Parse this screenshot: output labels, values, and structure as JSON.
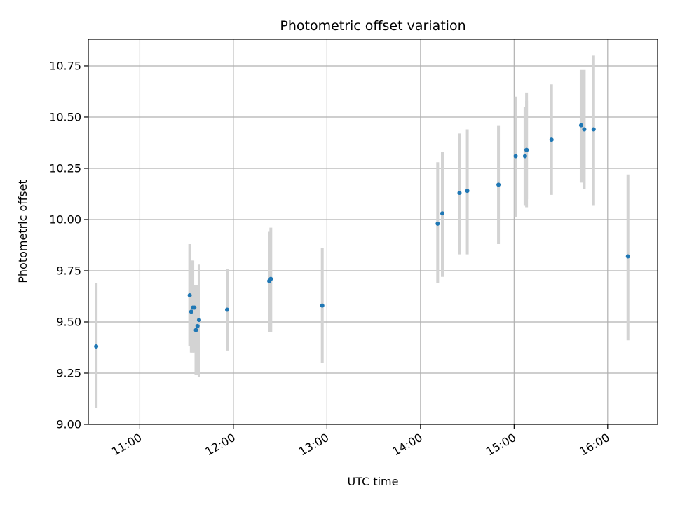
{
  "chart_data": {
    "type": "scatter",
    "title": "Photometric offset variation",
    "xlabel": "UTC time",
    "ylabel": "Photometric offset",
    "xlim": [
      "10:27",
      "16:32"
    ],
    "ylim": [
      9.0,
      10.88
    ],
    "xticks": [
      "11:00",
      "12:00",
      "13:00",
      "14:00",
      "15:00",
      "16:00"
    ],
    "yticks": [
      "9.00",
      "9.25",
      "9.50",
      "9.75",
      "10.00",
      "10.25",
      "10.50",
      "10.75"
    ],
    "grid": true,
    "colors": {
      "points": "#1f77b4",
      "errorbars": "#d3d3d3",
      "grid": "#b0b0b0"
    },
    "points": [
      {
        "x": "10:32",
        "y": 9.38,
        "ylow": 9.08,
        "yhigh": 9.69
      },
      {
        "x": "11:32",
        "y": 9.63,
        "ylow": 9.38,
        "yhigh": 9.88
      },
      {
        "x": "11:33",
        "y": 9.55,
        "ylow": 9.35,
        "yhigh": 9.8
      },
      {
        "x": "11:34",
        "y": 9.57,
        "ylow": 9.35,
        "yhigh": 9.8
      },
      {
        "x": "11:35",
        "y": 9.57,
        "ylow": 9.35,
        "yhigh": 9.68
      },
      {
        "x": "11:36",
        "y": 9.46,
        "ylow": 9.24,
        "yhigh": 9.68
      },
      {
        "x": "11:37",
        "y": 9.48,
        "ylow": 9.24,
        "yhigh": 9.68
      },
      {
        "x": "11:38",
        "y": 9.51,
        "ylow": 9.23,
        "yhigh": 9.78
      },
      {
        "x": "11:56",
        "y": 9.56,
        "ylow": 9.36,
        "yhigh": 9.76
      },
      {
        "x": "12:23",
        "y": 9.7,
        "ylow": 9.45,
        "yhigh": 9.94
      },
      {
        "x": "12:24",
        "y": 9.71,
        "ylow": 9.45,
        "yhigh": 9.96
      },
      {
        "x": "12:57",
        "y": 9.58,
        "ylow": 9.3,
        "yhigh": 9.86
      },
      {
        "x": "14:11",
        "y": 9.98,
        "ylow": 9.69,
        "yhigh": 10.28
      },
      {
        "x": "14:14",
        "y": 10.03,
        "ylow": 9.72,
        "yhigh": 10.33
      },
      {
        "x": "14:25",
        "y": 10.13,
        "ylow": 9.83,
        "yhigh": 10.42
      },
      {
        "x": "14:30",
        "y": 10.14,
        "ylow": 9.83,
        "yhigh": 10.44
      },
      {
        "x": "14:50",
        "y": 10.17,
        "ylow": 9.88,
        "yhigh": 10.46
      },
      {
        "x": "15:01",
        "y": 10.31,
        "ylow": 10.01,
        "yhigh": 10.6
      },
      {
        "x": "15:07",
        "y": 10.31,
        "ylow": 10.07,
        "yhigh": 10.55
      },
      {
        "x": "15:08",
        "y": 10.34,
        "ylow": 10.06,
        "yhigh": 10.62
      },
      {
        "x": "15:08",
        "y": 10.34,
        "ylow": 10.1,
        "yhigh": 10.58
      },
      {
        "x": "15:24",
        "y": 10.39,
        "ylow": 10.12,
        "yhigh": 10.66
      },
      {
        "x": "15:43",
        "y": 10.46,
        "ylow": 10.18,
        "yhigh": 10.73
      },
      {
        "x": "15:45",
        "y": 10.44,
        "ylow": 10.15,
        "yhigh": 10.73
      },
      {
        "x": "15:51",
        "y": 10.44,
        "ylow": 10.07,
        "yhigh": 10.8
      },
      {
        "x": "16:13",
        "y": 9.82,
        "ylow": 9.41,
        "yhigh": 10.22
      }
    ]
  }
}
